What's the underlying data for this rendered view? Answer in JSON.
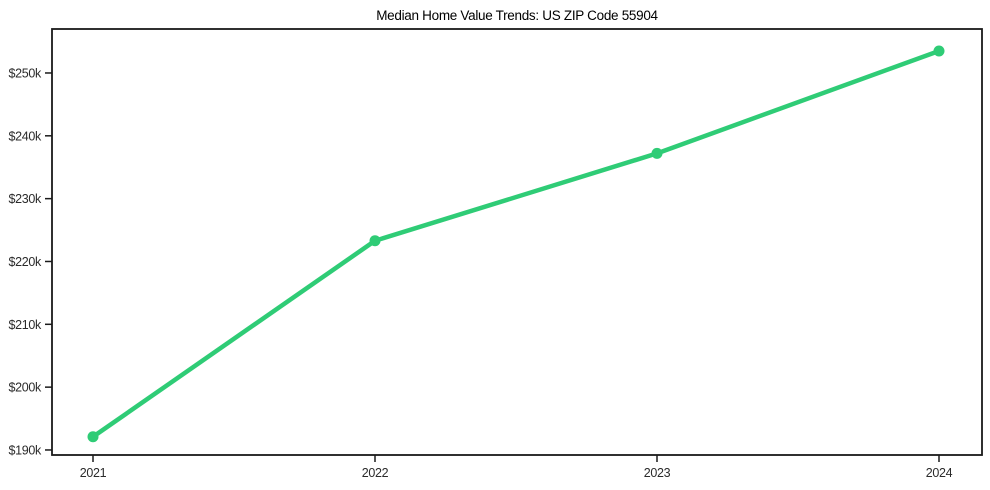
{
  "chart": {
    "title": "Median Home Value Trends: US ZIP Code 55904"
  },
  "chart_data": {
    "type": "line",
    "title": "Median Home Value Trends: US ZIP Code 55904",
    "x": [
      "2021",
      "2022",
      "2023",
      "2024"
    ],
    "series": [
      {
        "name": "Median Home Value",
        "values": [
          192100,
          223300,
          237200,
          253500
        ]
      }
    ],
    "xlabel": "",
    "ylabel": "",
    "ylim": [
      189200,
      257000
    ],
    "yticks": [
      190000,
      200000,
      210000,
      220000,
      230000,
      240000,
      250000
    ],
    "ytick_labels": [
      "$190k",
      "$200k",
      "$210k",
      "$220k",
      "$230k",
      "$240k",
      "$250k"
    ],
    "grid": false,
    "legend_position": "none",
    "colors": {
      "line": "#2fcc76",
      "marker": "#2fcc76",
      "axis": "#1a1a1a",
      "tick_label": "#2b2b2b",
      "title": "#000000",
      "background": "#ffffff"
    }
  }
}
